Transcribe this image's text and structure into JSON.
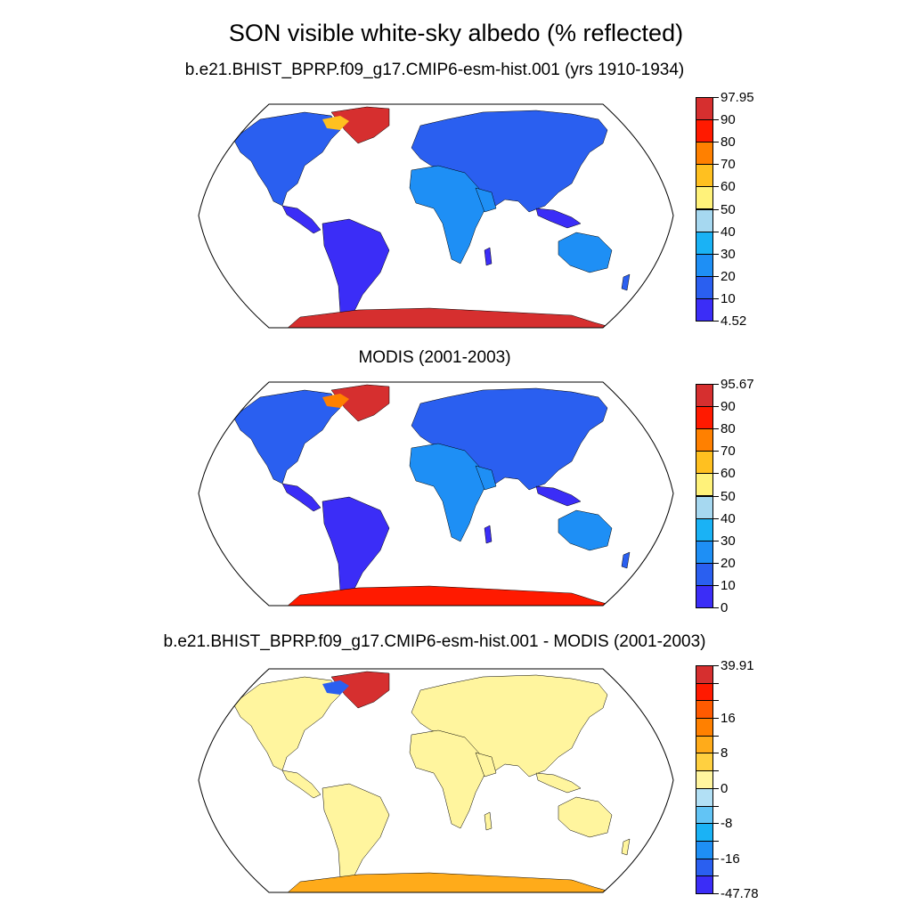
{
  "title": "SON visible white-sky albedo (% reflected)",
  "panels": [
    {
      "id": "model",
      "title": "b.e21.BHIST_BPRP.f09_g17.CMIP6-esm-hist.001 (yrs 1910-1934)",
      "projection": "Robinson",
      "colorbar": {
        "labels": [
          "97.95",
          "90",
          "80",
          "70",
          "60",
          "50",
          "40",
          "30",
          "20",
          "10",
          "4.52"
        ],
        "colors": [
          "#d62f2f",
          "#ff1a00",
          "#ff8000",
          "#ffc020",
          "#fff27a",
          "#a6d8f0",
          "#1ab2f5",
          "#1e8ff5",
          "#2a5ff0",
          "#3b2df7"
        ],
        "min": 4.52,
        "max": 97.95
      },
      "regions": {
        "land_temperate": "#2a5ff0",
        "land_tropical": "#3b2df7",
        "desert": "#1e8ff5",
        "greenland": "#d62f2f",
        "antarctica": "#d62f2f",
        "arctic_coast": "#ffc020"
      }
    },
    {
      "id": "obs",
      "title": "MODIS (2001-2003)",
      "projection": "Robinson",
      "colorbar": {
        "labels": [
          "95.67",
          "90",
          "80",
          "70",
          "60",
          "50",
          "40",
          "30",
          "20",
          "10",
          "0"
        ],
        "colors": [
          "#d62f2f",
          "#ff1a00",
          "#ff8000",
          "#ffc020",
          "#fff27a",
          "#a6d8f0",
          "#1ab2f5",
          "#1e8ff5",
          "#2a5ff0",
          "#3b2df7"
        ],
        "min": 0,
        "max": 95.67
      },
      "regions": {
        "land_temperate": "#2a5ff0",
        "land_tropical": "#3b2df7",
        "desert": "#1e8ff5",
        "greenland": "#d62f2f",
        "antarctica": "#ff1a00",
        "arctic_coast": "#ff8000"
      }
    },
    {
      "id": "diff",
      "title": "b.e21.BHIST_BPRP.f09_g17.CMIP6-esm-hist.001 - MODIS (2001-2003)",
      "projection": "Robinson",
      "colorbar": {
        "labels": [
          "39.91",
          "",
          "",
          "16",
          "",
          "8",
          "",
          "0",
          "",
          "-8",
          "",
          "-16",
          "",
          "-47.78"
        ],
        "colors": [
          "#d62f2f",
          "#ff1a00",
          "#ff5a00",
          "#ff8000",
          "#ffab1a",
          "#ffd040",
          "#fff59e",
          "#b2e0f5",
          "#62c4f5",
          "#1ab2f5",
          "#1e8ff5",
          "#2a5ff0",
          "#3b2df7"
        ],
        "min": -47.78,
        "max": 39.91
      },
      "regions": {
        "land_temperate": "#fff59e",
        "land_tropical": "#fff59e",
        "desert": "#fff59e",
        "greenland": "#d62f2f",
        "antarctica": "#ffab1a",
        "arctic_coast": "#2a5ff0"
      }
    }
  ]
}
